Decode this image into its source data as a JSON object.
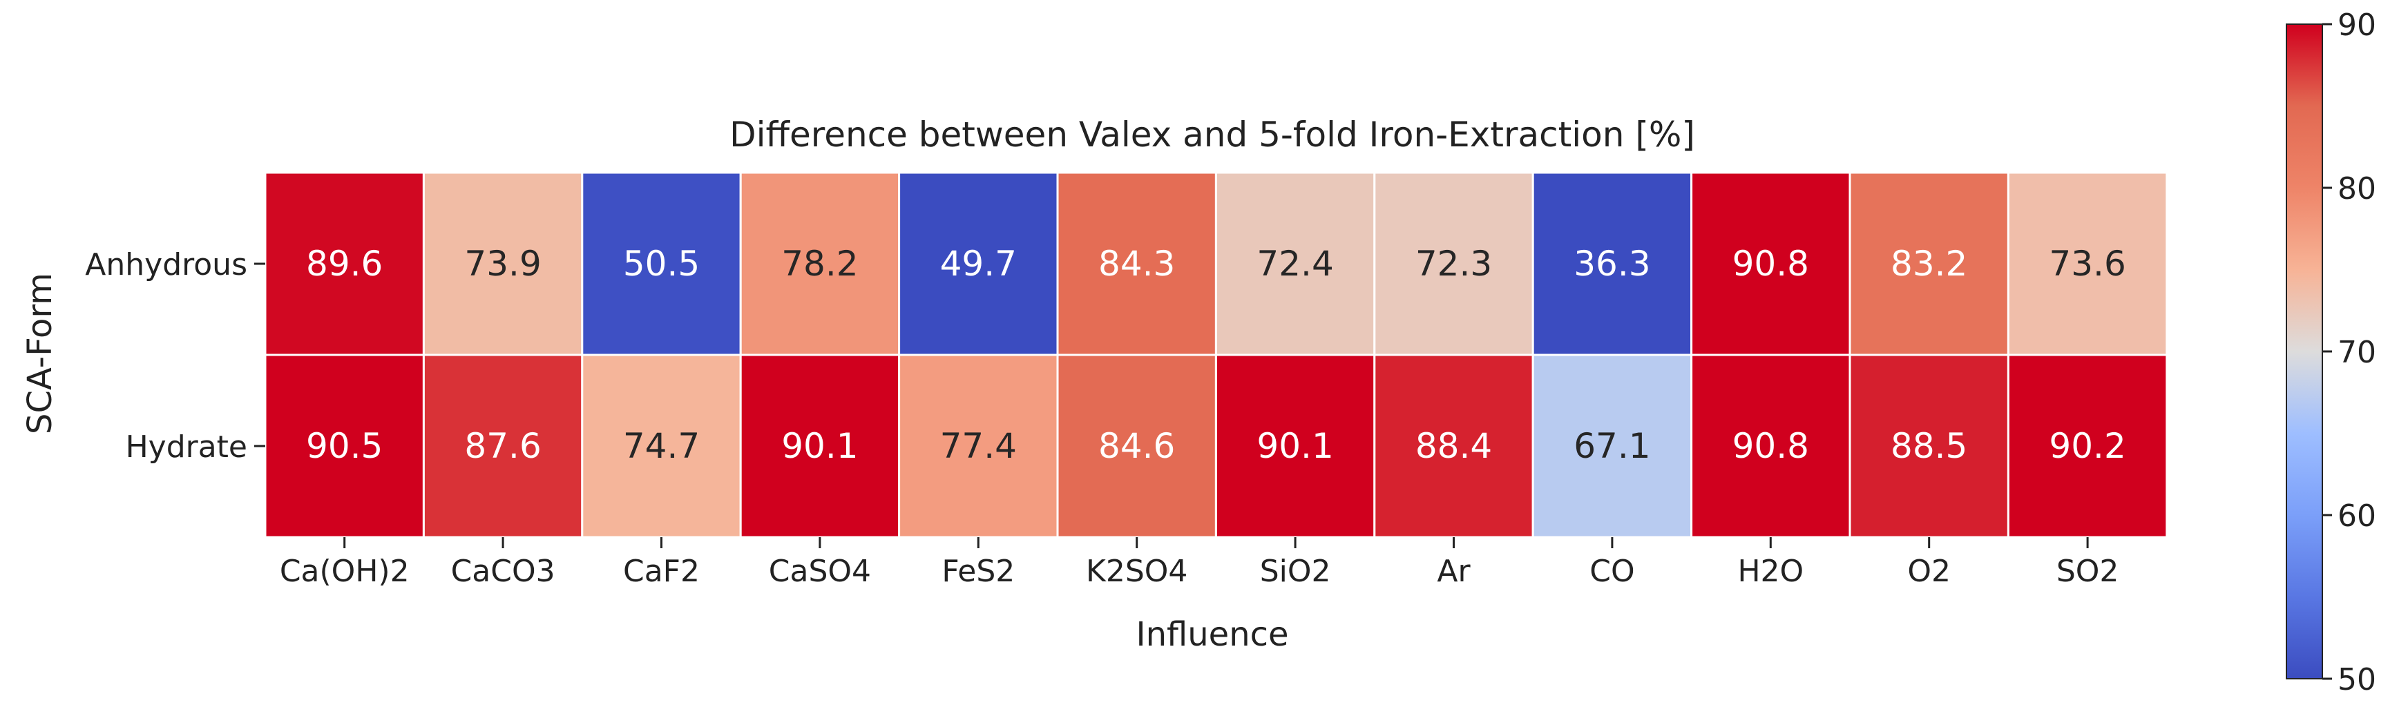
{
  "chart_data": {
    "type": "heatmap",
    "title": "Difference between Valex and 5-fold Iron-Extraction [%]",
    "xlabel": "Influence",
    "ylabel": "SCA-Form",
    "x_categories": [
      "Ca(OH)2",
      "CaCO3",
      "CaF2",
      "CaSO4",
      "FeS2",
      "K2SO4",
      "SiO2",
      "Ar",
      "CO",
      "H2O",
      "O2",
      "SO2"
    ],
    "y_categories": [
      "Anhydrous",
      "Hydrate"
    ],
    "values": [
      [
        89.6,
        73.9,
        50.5,
        78.2,
        49.7,
        84.3,
        72.4,
        72.3,
        36.3,
        90.8,
        83.2,
        73.6
      ],
      [
        90.5,
        87.6,
        74.7,
        90.1,
        77.4,
        84.6,
        90.1,
        88.4,
        67.1,
        90.8,
        88.5,
        90.2
      ]
    ],
    "colorbar": {
      "colormap": "coolwarm",
      "vmin": 50,
      "vmax": 90,
      "ticks": [
        50,
        60,
        70,
        80,
        90
      ],
      "tick_labels": [
        "50",
        "60",
        "70",
        "80",
        "90"
      ]
    }
  }
}
